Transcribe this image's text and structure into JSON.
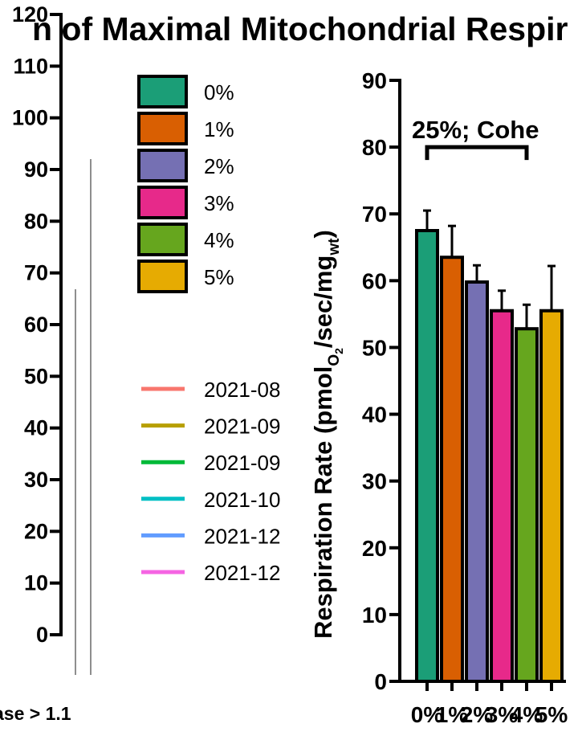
{
  "chart_data": {
    "type": "bar",
    "title": "n of Maximal Mitochondrial Respir",
    "left_panel": {
      "y_ticks": [
        0,
        10,
        20,
        30,
        40,
        50,
        60,
        70,
        80,
        90,
        100,
        110,
        120
      ],
      "y_tick_labels": [
        "0",
        "10",
        "20",
        "30",
        "40",
        "50",
        "60",
        "70",
        "80",
        "90",
        "100",
        "110",
        "120"
      ],
      "ylim": [
        0,
        120
      ],
      "footer": "ase > 1.1"
    },
    "legend_groups": {
      "entries": [
        {
          "label": "0%",
          "color": "#1b9e77"
        },
        {
          "label": "1%",
          "color": "#d95f02"
        },
        {
          "label": "2%",
          "color": "#7570b3"
        },
        {
          "label": "3%",
          "color": "#e7298a"
        },
        {
          "label": "4%",
          "color": "#66a61e"
        },
        {
          "label": "5%",
          "color": "#e6ab02"
        }
      ]
    },
    "legend_dates": {
      "entries": [
        {
          "label": "2021-08",
          "color": "#f8766d"
        },
        {
          "label": "2021-09",
          "color": "#b79f00"
        },
        {
          "label": "2021-09",
          "color": "#00ba38"
        },
        {
          "label": "2021-10",
          "color": "#00bfc4"
        },
        {
          "label": "2021-12",
          "color": "#619cff"
        },
        {
          "label": "2021-12",
          "color": "#f564e3"
        }
      ]
    },
    "right_panel": {
      "ylabel_main": "Respiration Rate",
      "ylabel_unit_parts": [
        "pmol",
        "O",
        "2",
        "/sec/mg",
        "wt"
      ],
      "ylim": [
        0,
        90
      ],
      "y_ticks": [
        0,
        10,
        20,
        30,
        40,
        50,
        60,
        70,
        80,
        90
      ],
      "y_tick_labels": [
        "0",
        "10",
        "20",
        "30",
        "40",
        "50",
        "60",
        "70",
        "80",
        "90"
      ],
      "categories": [
        "0%",
        "1%",
        "2%",
        "3%",
        "4%",
        "5%"
      ],
      "values": [
        67.5,
        63.5,
        59.8,
        55.5,
        52.8,
        55.5
      ],
      "errors": [
        3.0,
        4.7,
        2.5,
        3.0,
        3.6,
        6.7
      ],
      "colors": [
        "#1b9e77",
        "#d95f02",
        "#7570b3",
        "#e7298a",
        "#66a61e",
        "#e6ab02"
      ],
      "annotation": {
        "text": "25%; Cohe",
        "from_category": 0,
        "to_category": 4,
        "y": 80
      }
    }
  }
}
